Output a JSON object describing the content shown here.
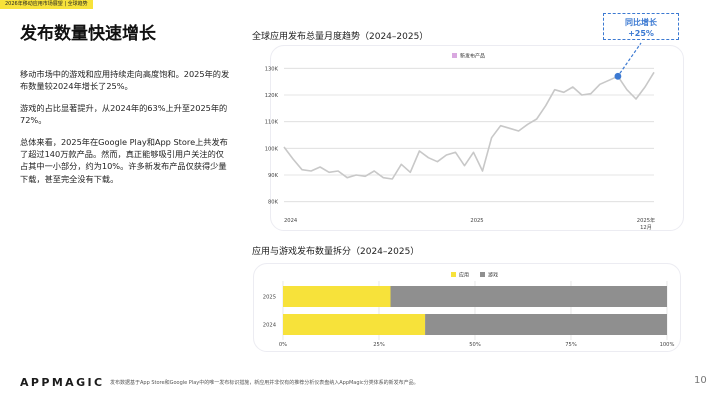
{
  "header": {
    "tag": "2026年移动应用市场展望 | 全球趋势"
  },
  "title": "发布数量快速增长",
  "body_paragraphs": [
    "移动市场中的游戏和应用持续走向高度饱和。2025年的发布数量较2024年增长了25%。",
    "游戏的占比显著提升，从2024年的63%上升至2025年的72%。",
    "总体来看，2025年在Google Play和App Store上共发布了超过140万款产品。然而，真正能够吸引用户关注的仅占其中一小部分，约为10%。许多新发布产品仅获得少量下载，甚至完全没有下载。"
  ],
  "callout": {
    "line1": "同比增长",
    "line2": "+25%"
  },
  "footer": {
    "logo": "APPMAGIC",
    "footnote": "发布数据基于App Store和Google Play中的唯一发布标识措施，新应用并非仅有的推荐分析仪表盘纳入AppMagic分类体系的新发布产品。",
    "page_number": "10"
  },
  "colors": {
    "line": "#c8c8c8",
    "apps": "#f7e23a",
    "games": "#8f8f8f",
    "legend_line": "#d9a8e0",
    "callout": "#3b79d2"
  },
  "chart_data": [
    {
      "type": "line",
      "title": "全球应用发布总量月度趋势（2024–2025）",
      "legend": "新发布产品",
      "legend_position": "top",
      "x_tick_labels": [
        "2024",
        "2025",
        "2025年12月"
      ],
      "y_tick_labels": [
        "80K",
        "90K",
        "100K",
        "110K",
        "120K",
        "130K"
      ],
      "ylim": [
        78000,
        132000
      ],
      "grid": true,
      "series": [
        {
          "name": "新发布产品",
          "values": [
            100500,
            96000,
            92000,
            91500,
            93000,
            91000,
            91500,
            89000,
            90000,
            89500,
            91500,
            89000,
            88500,
            94000,
            91000,
            99000,
            96500,
            95000,
            97500,
            98500,
            93500,
            98500,
            91500,
            104000,
            108500,
            107500,
            106500,
            109000,
            111000,
            116000,
            122000,
            121000,
            123000,
            120000,
            120500,
            124000,
            125500,
            127000,
            122000,
            118500,
            123000,
            128500
          ]
        }
      ],
      "highlight_index": 37
    },
    {
      "type": "bar",
      "orientation": "horizontal",
      "stacked": true,
      "title": "应用与游戏发布数量拆分（2024–2025）",
      "categories": [
        "2025",
        "2024"
      ],
      "series": [
        {
          "name": "应用",
          "values": [
            28,
            37
          ]
        },
        {
          "name": "游戏",
          "values": [
            72,
            63
          ]
        }
      ],
      "x_tick_labels": [
        "0%",
        "25%",
        "50%",
        "75%",
        "100%"
      ],
      "xlim": [
        0,
        100
      ],
      "legend_position": "top",
      "grid": true
    }
  ]
}
